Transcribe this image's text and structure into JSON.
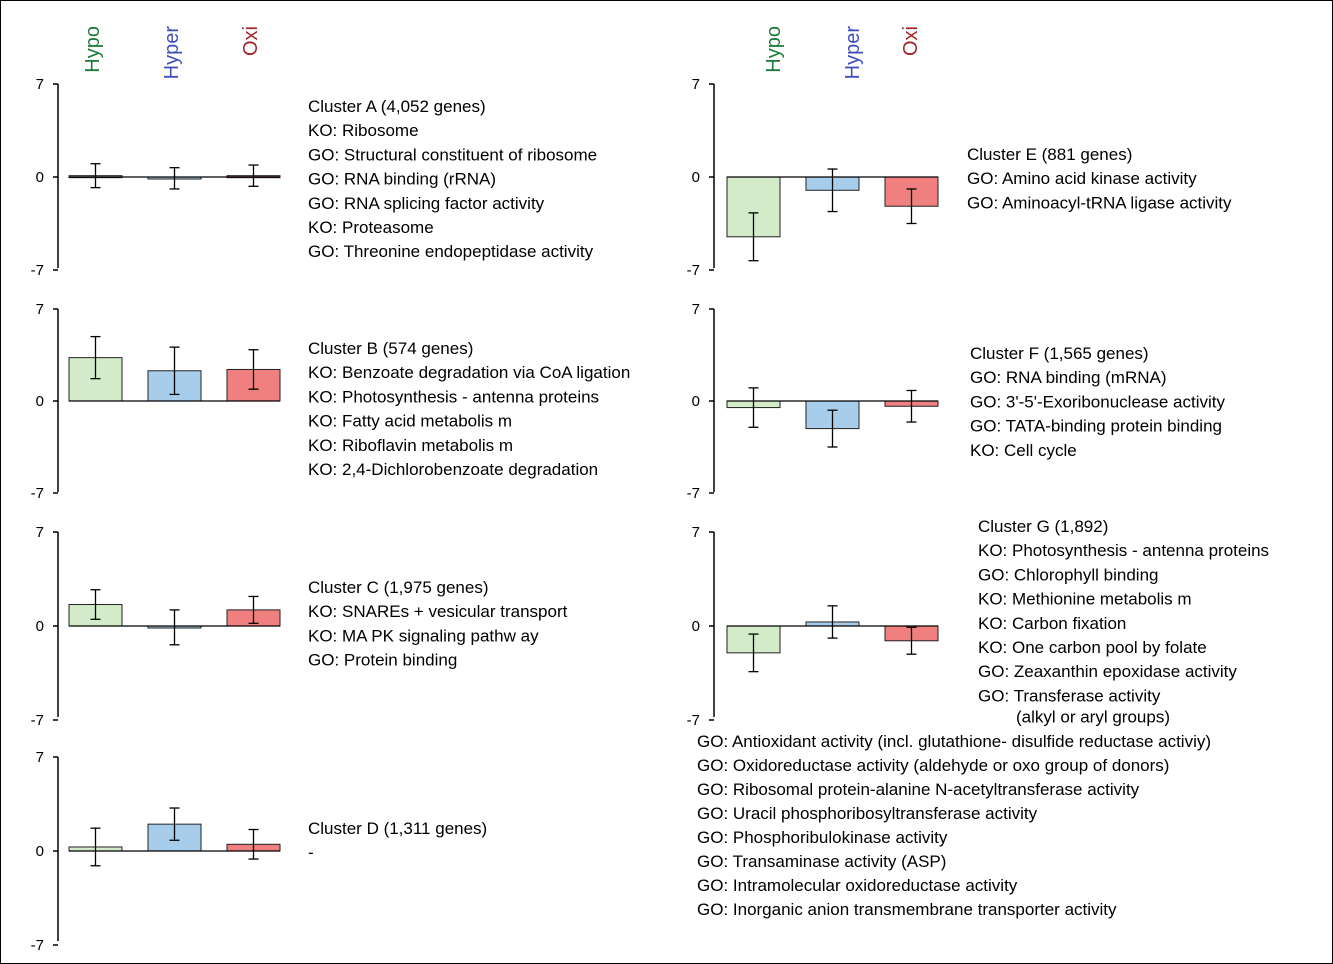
{
  "colors": {
    "hypo_text": "#1b7a3a",
    "hyper_text": "#3e4fb8",
    "oxi_text": "#a2262a",
    "hypo_fill": "#d3ebc8",
    "hyper_fill": "#a8cdeb",
    "oxi_fill": "#f08080"
  },
  "chart_data": [
    {
      "type": "bar",
      "panel": "A",
      "categories": [
        "Hypo",
        "Hyper",
        "Oxi"
      ],
      "values": [
        0.1,
        -0.1,
        0.1
      ],
      "errors": [
        0.9,
        0.8,
        0.8
      ],
      "ylim": [
        -7,
        7
      ],
      "yticks": [
        "7",
        "0",
        "-7"
      ],
      "annotation": [
        "Cluster A  (4,052 genes)",
        "KO: Ribosome",
        "GO: Structural constituent of ribosome",
        "GO: RNA binding (rRNA)",
        "GO: RNA splicing factor activity",
        "KO: Proteasome",
        "GO: Threonine endopeptidase activity"
      ]
    },
    {
      "type": "bar",
      "panel": "B",
      "categories": [
        "Hypo",
        "Hyper",
        "Oxi"
      ],
      "values": [
        3.3,
        2.3,
        2.4
      ],
      "errors": [
        1.6,
        1.8,
        1.5
      ],
      "ylim": [
        -7,
        7
      ],
      "yticks": [
        "7",
        "0",
        "-7"
      ],
      "annotation": [
        "Cluster B  (574 genes)",
        "KO: Benzoate degradation via CoA ligation",
        "KO: Photosynthesis - antenna proteins",
        "KO: Fatty acid metabolis m",
        "KO: Riboflavin metabolis m",
        "KO: 2,4-Dichlorobenzoate degradation"
      ]
    },
    {
      "type": "bar",
      "panel": "C",
      "categories": [
        "Hypo",
        "Hyper",
        "Oxi"
      ],
      "values": [
        1.6,
        -0.1,
        1.2
      ],
      "errors": [
        1.1,
        1.3,
        1.0
      ],
      "ylim": [
        -7,
        7
      ],
      "yticks": [
        "7",
        "0",
        "-7"
      ],
      "annotation": [
        "Cluster C  (1,975 genes)",
        "KO: SNAREs + vesicular transport",
        "KO: MA PK signaling pathw ay",
        "GO: Protein binding"
      ]
    },
    {
      "type": "bar",
      "panel": "D",
      "categories": [
        "Hypo",
        "Hyper",
        "Oxi"
      ],
      "values": [
        0.3,
        2.0,
        0.5
      ],
      "errors": [
        1.4,
        1.2,
        1.1
      ],
      "ylim": [
        -7,
        7
      ],
      "yticks": [
        "7",
        "0",
        "-7"
      ],
      "annotation": [
        "Cluster D  (1,311 genes)",
        "-"
      ]
    },
    {
      "type": "bar",
      "panel": "E",
      "categories": [
        "Hypo",
        "Hyper",
        "Oxi"
      ],
      "values": [
        -4.5,
        -1.0,
        -2.2
      ],
      "errors": [
        1.8,
        1.6,
        1.3
      ],
      "ylim": [
        -7,
        7
      ],
      "yticks": [
        "7",
        "0",
        "-7"
      ],
      "annotation": [
        "Cluster E  (881 genes)",
        "GO: Amino acid kinase activity",
        "GO: Aminoacyl-tRNA ligase activity"
      ]
    },
    {
      "type": "bar",
      "panel": "F",
      "categories": [
        "Hypo",
        "Hyper",
        "Oxi"
      ],
      "values": [
        -0.5,
        -2.1,
        -0.4
      ],
      "errors": [
        1.5,
        1.4,
        1.2
      ],
      "ylim": [
        -7,
        7
      ],
      "yticks": [
        "7",
        "0",
        "-7"
      ],
      "annotation": [
        "Cluster F  (1,565 genes)",
        "GO: RNA binding (mRNA)",
        "GO: 3'-5'-Exoribonuclease activity",
        "GO: TATA-binding protein binding",
        "KO: Cell cycle"
      ]
    },
    {
      "type": "bar",
      "panel": "G",
      "categories": [
        "Hypo",
        "Hyper",
        "Oxi"
      ],
      "values": [
        -2.0,
        0.3,
        -1.1
      ],
      "errors": [
        1.4,
        1.2,
        1.0
      ],
      "ylim": [
        -7,
        7
      ],
      "yticks": [
        "7",
        "0",
        "-7"
      ],
      "annotation": [
        "Cluster G  (1,892)",
        "KO: Photosynthesis - antenna proteins",
        "GO: Chlorophyll binding",
        "KO: Methionine metabolis m",
        "KO: Carbon fixation",
        "KO: One carbon pool by folate",
        "GO: Zeaxanthin epoxidase activity",
        "GO: Transferase activity",
        "(alkyl or aryl groups)"
      ]
    }
  ],
  "extra_annotation": [
    "GO: Antioxidant activity (incl. glutathione- disulfide reductase activiy)",
    "GO: Oxidoreductase activity (aldehyde or oxo group of donors)",
    "GO: Ribosomal protein-alanine N-acetyltransferase activity",
    "GO: Uracil phosphoribosyltransferase activity",
    "GO: Phosphoribulokinase activity",
    "GO: Transaminase activity (ASP)",
    "GO: Intramolecular oxidoreductase activity",
    "GO: Inorganic anion transmembrane transporter activity"
  ]
}
